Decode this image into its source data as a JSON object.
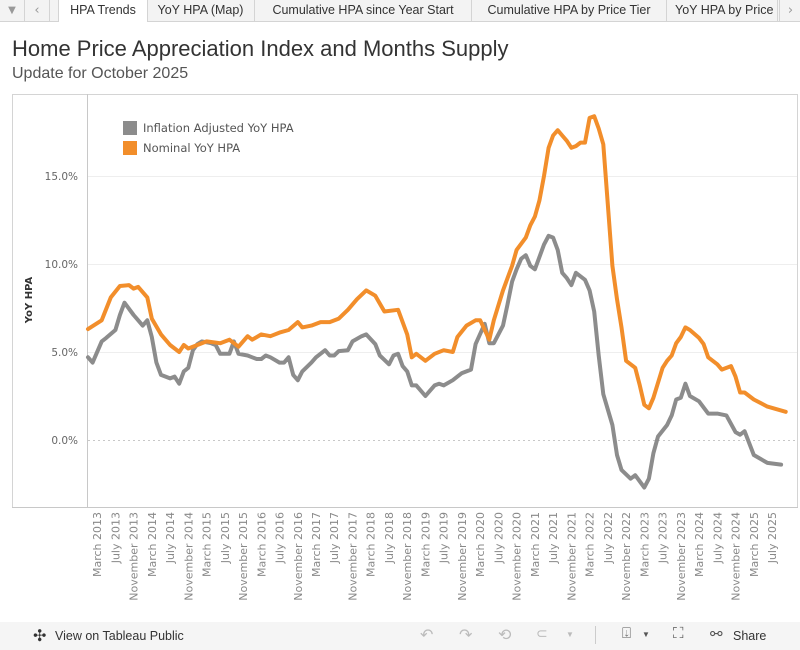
{
  "tabs": {
    "menu_icon": "caret-down-icon",
    "items": [
      "HPA Trends",
      "YoY HPA (Map)",
      "Cumulative HPA since Year Start",
      "Cumulative HPA by Price Tier",
      "YoY HPA by Price"
    ],
    "active": 0
  },
  "header": {
    "title": "Home Price Appreciation Index and Months Supply",
    "subtitle": "Update for October 2025"
  },
  "footer": {
    "view_label": "View on Tableau Public",
    "share_label": "Share"
  },
  "colors": {
    "inflation_adjusted": "#8c8c8c",
    "nominal": "#f28e2b"
  },
  "chart_data": {
    "type": "line",
    "ylabel": "YoY HPA",
    "yticks": [
      "0.0%",
      "5.0%",
      "10.0%",
      "15.0%"
    ],
    "ytick_values": [
      0,
      5,
      10,
      15
    ],
    "ylim": [
      -3.8,
      19.5
    ],
    "xlim": [
      "2012-12",
      "2025-12"
    ],
    "grid": true,
    "legend_position": "top-left",
    "xticks": [
      "March 2013",
      "July 2013",
      "November 2013",
      "March 2014",
      "July 2014",
      "November 2014",
      "March 2015",
      "July 2015",
      "November 2015",
      "March 2016",
      "July 2016",
      "November 2016",
      "March 2017",
      "July 2017",
      "November 2017",
      "March 2018",
      "July 2018",
      "November 2018",
      "March 2019",
      "July 2019",
      "November 2019",
      "March 2020",
      "July 2020",
      "November 2020",
      "March 2021",
      "July 2021",
      "November 2021",
      "March 2022",
      "July 2022",
      "November 2022",
      "March 2023",
      "July 2023",
      "November 2023",
      "March 2024",
      "July 2024",
      "November 2024",
      "March 2025",
      "July 2025"
    ],
    "series": [
      {
        "name": "Inflation Adjusted YoY HPA",
        "color": "#8c8c8c",
        "points": [
          [
            "2013-01",
            4.7
          ],
          [
            "2013-02",
            4.4
          ],
          [
            "2013-04",
            5.6
          ],
          [
            "2013-05",
            5.8
          ],
          [
            "2013-07",
            6.25
          ],
          [
            "2013-08",
            7.1
          ],
          [
            "2013-09",
            7.8
          ],
          [
            "2013-11",
            7.1
          ],
          [
            "2013-12",
            6.8
          ],
          [
            "2014-01",
            6.5
          ],
          [
            "2014-02",
            6.8
          ],
          [
            "2014-03",
            5.85
          ],
          [
            "2014-04",
            4.4
          ],
          [
            "2014-05",
            3.7
          ],
          [
            "2014-07",
            3.5
          ],
          [
            "2014-08",
            3.6
          ],
          [
            "2014-09",
            3.2
          ],
          [
            "2014-10",
            3.9
          ],
          [
            "2014-11",
            4.1
          ],
          [
            "2014-12",
            5.1
          ],
          [
            "2015-01",
            5.45
          ],
          [
            "2015-02",
            5.6
          ],
          [
            "2015-04",
            5.5
          ],
          [
            "2015-05",
            5.4
          ],
          [
            "2015-06",
            4.9
          ],
          [
            "2015-08",
            4.9
          ],
          [
            "2015-09",
            5.6
          ],
          [
            "2015-10",
            4.9
          ],
          [
            "2015-12",
            4.8
          ],
          [
            "2016-01",
            4.7
          ],
          [
            "2016-02",
            4.6
          ],
          [
            "2016-03",
            4.6
          ],
          [
            "2016-04",
            4.8
          ],
          [
            "2016-05",
            4.7
          ],
          [
            "2016-07",
            4.4
          ],
          [
            "2016-08",
            4.4
          ],
          [
            "2016-09",
            4.7
          ],
          [
            "2016-10",
            3.7
          ],
          [
            "2016-11",
            3.4
          ],
          [
            "2016-12",
            3.9
          ],
          [
            "2017-02",
            4.4
          ],
          [
            "2017-03",
            4.7
          ],
          [
            "2017-05",
            5.1
          ],
          [
            "2017-06",
            4.8
          ],
          [
            "2017-07",
            4.8
          ],
          [
            "2017-08",
            5.05
          ],
          [
            "2017-10",
            5.1
          ],
          [
            "2017-11",
            5.6
          ],
          [
            "2018-01",
            5.9
          ],
          [
            "2018-02",
            6.0
          ],
          [
            "2018-04",
            5.45
          ],
          [
            "2018-05",
            4.8
          ],
          [
            "2018-07",
            4.3
          ],
          [
            "2018-08",
            4.8
          ],
          [
            "2018-09",
            4.9
          ],
          [
            "2018-10",
            4.2
          ],
          [
            "2018-11",
            3.9
          ],
          [
            "2018-12",
            3.1
          ],
          [
            "2019-01",
            3.1
          ],
          [
            "2019-03",
            2.5
          ],
          [
            "2019-04",
            2.8
          ],
          [
            "2019-05",
            3.1
          ],
          [
            "2019-06",
            3.2
          ],
          [
            "2019-07",
            3.1
          ],
          [
            "2019-09",
            3.4
          ],
          [
            "2019-10",
            3.6
          ],
          [
            "2019-11",
            3.8
          ],
          [
            "2020-01",
            4.0
          ],
          [
            "2020-02",
            5.45
          ],
          [
            "2020-04",
            6.6
          ],
          [
            "2020-05",
            5.5
          ],
          [
            "2020-06",
            5.5
          ],
          [
            "2020-08",
            6.5
          ],
          [
            "2020-09",
            7.7
          ],
          [
            "2020-10",
            9.0
          ],
          [
            "2020-11",
            9.7
          ],
          [
            "2020-12",
            10.3
          ],
          [
            "2021-01",
            10.5
          ],
          [
            "2021-02",
            9.9
          ],
          [
            "2021-03",
            9.7
          ],
          [
            "2021-05",
            11.1
          ],
          [
            "2021-06",
            11.6
          ],
          [
            "2021-07",
            11.5
          ],
          [
            "2021-08",
            10.8
          ],
          [
            "2021-09",
            9.5
          ],
          [
            "2021-10",
            9.2
          ],
          [
            "2021-11",
            8.8
          ],
          [
            "2021-12",
            9.5
          ],
          [
            "2022-02",
            9.1
          ],
          [
            "2022-03",
            8.5
          ],
          [
            "2022-04",
            7.3
          ],
          [
            "2022-05",
            4.8
          ],
          [
            "2022-06",
            2.6
          ],
          [
            "2022-08",
            0.85
          ],
          [
            "2022-09",
            -0.85
          ],
          [
            "2022-10",
            -1.7
          ],
          [
            "2022-12",
            -2.2
          ],
          [
            "2023-01",
            -2.0
          ],
          [
            "2023-03",
            -2.7
          ],
          [
            "2023-04",
            -2.2
          ],
          [
            "2023-05",
            -0.75
          ],
          [
            "2023-06",
            0.2
          ],
          [
            "2023-08",
            0.85
          ],
          [
            "2023-09",
            1.4
          ],
          [
            "2023-10",
            2.3
          ],
          [
            "2023-11",
            2.4
          ],
          [
            "2023-12",
            3.2
          ],
          [
            "2024-01",
            2.5
          ],
          [
            "2024-03",
            2.2
          ],
          [
            "2024-05",
            1.5
          ],
          [
            "2024-07",
            1.5
          ],
          [
            "2024-09",
            1.4
          ],
          [
            "2024-11",
            0.45
          ],
          [
            "2024-12",
            0.3
          ],
          [
            "2025-01",
            0.5
          ],
          [
            "2025-03",
            -0.85
          ],
          [
            "2025-06",
            -1.3
          ],
          [
            "2025-09",
            -1.4
          ]
        ]
      },
      {
        "name": "Nominal YoY HPA",
        "color": "#f28e2b",
        "points": [
          [
            "2013-01",
            6.3
          ],
          [
            "2013-04",
            6.8
          ],
          [
            "2013-06",
            8.1
          ],
          [
            "2013-08",
            8.75
          ],
          [
            "2013-10",
            8.8
          ],
          [
            "2013-11",
            8.6
          ],
          [
            "2013-12",
            8.7
          ],
          [
            "2014-02",
            8.1
          ],
          [
            "2014-03",
            6.9
          ],
          [
            "2014-05",
            6.0
          ],
          [
            "2014-07",
            5.4
          ],
          [
            "2014-09",
            5.0
          ],
          [
            "2014-10",
            5.4
          ],
          [
            "2014-11",
            5.2
          ],
          [
            "2015-01",
            5.4
          ],
          [
            "2015-03",
            5.6
          ],
          [
            "2015-06",
            5.5
          ],
          [
            "2015-08",
            5.7
          ],
          [
            "2015-10",
            5.3
          ],
          [
            "2015-12",
            5.9
          ],
          [
            "2016-01",
            5.7
          ],
          [
            "2016-03",
            6.0
          ],
          [
            "2016-05",
            5.9
          ],
          [
            "2016-07",
            6.1
          ],
          [
            "2016-09",
            6.25
          ],
          [
            "2016-11",
            6.7
          ],
          [
            "2016-12",
            6.4
          ],
          [
            "2017-02",
            6.5
          ],
          [
            "2017-04",
            6.7
          ],
          [
            "2017-06",
            6.7
          ],
          [
            "2017-08",
            6.9
          ],
          [
            "2017-10",
            7.4
          ],
          [
            "2017-12",
            8.0
          ],
          [
            "2018-02",
            8.5
          ],
          [
            "2018-04",
            8.2
          ],
          [
            "2018-06",
            7.3
          ],
          [
            "2018-09",
            7.4
          ],
          [
            "2018-11",
            6.0
          ],
          [
            "2018-12",
            4.7
          ],
          [
            "2019-01",
            4.9
          ],
          [
            "2019-03",
            4.5
          ],
          [
            "2019-05",
            4.9
          ],
          [
            "2019-07",
            5.1
          ],
          [
            "2019-09",
            5.0
          ],
          [
            "2019-10",
            5.85
          ],
          [
            "2019-12",
            6.5
          ],
          [
            "2020-02",
            6.8
          ],
          [
            "2020-03",
            6.8
          ],
          [
            "2020-05",
            5.7
          ],
          [
            "2020-06",
            6.8
          ],
          [
            "2020-08",
            8.5
          ],
          [
            "2020-10",
            9.9
          ],
          [
            "2020-11",
            10.8
          ],
          [
            "2021-01",
            11.5
          ],
          [
            "2021-02",
            12.2
          ],
          [
            "2021-03",
            12.7
          ],
          [
            "2021-04",
            13.6
          ],
          [
            "2021-05",
            15.0
          ],
          [
            "2021-06",
            16.6
          ],
          [
            "2021-07",
            17.3
          ],
          [
            "2021-08",
            17.6
          ],
          [
            "2021-09",
            17.3
          ],
          [
            "2021-10",
            17.0
          ],
          [
            "2021-11",
            16.6
          ],
          [
            "2021-12",
            16.7
          ],
          [
            "2022-01",
            16.9
          ],
          [
            "2022-02",
            16.9
          ],
          [
            "2022-03",
            18.3
          ],
          [
            "2022-04",
            18.4
          ],
          [
            "2022-05",
            17.7
          ],
          [
            "2022-06",
            16.8
          ],
          [
            "2022-07",
            13.4
          ],
          [
            "2022-08",
            9.9
          ],
          [
            "2022-09",
            8.0
          ],
          [
            "2022-10",
            6.4
          ],
          [
            "2022-11",
            4.5
          ],
          [
            "2023-01",
            4.1
          ],
          [
            "2023-02",
            3.1
          ],
          [
            "2023-03",
            2.0
          ],
          [
            "2023-04",
            1.8
          ],
          [
            "2023-05",
            2.4
          ],
          [
            "2023-07",
            4.1
          ],
          [
            "2023-08",
            4.5
          ],
          [
            "2023-09",
            4.8
          ],
          [
            "2023-10",
            5.5
          ],
          [
            "2023-11",
            5.85
          ],
          [
            "2023-12",
            6.4
          ],
          [
            "2024-01",
            6.25
          ],
          [
            "2024-03",
            5.8
          ],
          [
            "2024-04",
            5.45
          ],
          [
            "2024-05",
            4.7
          ],
          [
            "2024-07",
            4.3
          ],
          [
            "2024-08",
            4.0
          ],
          [
            "2024-10",
            4.2
          ],
          [
            "2024-11",
            3.6
          ],
          [
            "2024-12",
            2.7
          ],
          [
            "2025-01",
            2.7
          ],
          [
            "2025-03",
            2.3
          ],
          [
            "2025-06",
            1.9
          ],
          [
            "2025-10",
            1.6
          ]
        ]
      }
    ]
  }
}
